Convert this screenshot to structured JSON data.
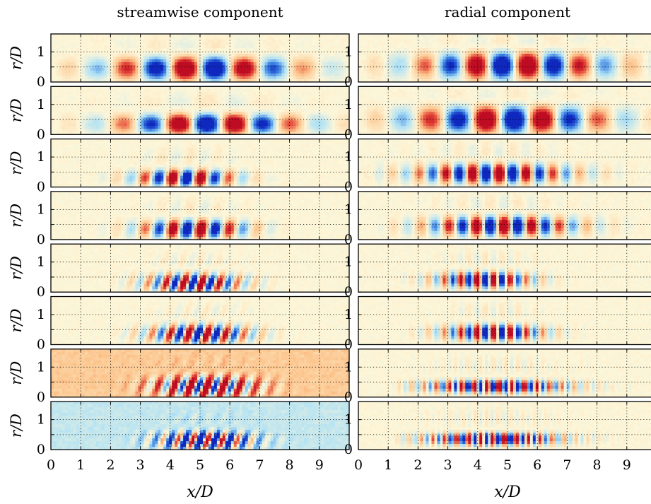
{
  "chart_data": {
    "type": "heatmap",
    "column_titles": [
      "streamwise component",
      "radial component"
    ],
    "xlabel": "x/D",
    "ylabel": "r/D",
    "xlim": [
      0,
      10
    ],
    "ylim": [
      0,
      1.6
    ],
    "xticks": [
      "0",
      "1",
      "2",
      "3",
      "4",
      "5",
      "6",
      "7",
      "8",
      "9"
    ],
    "yticks": [
      "0",
      "1"
    ],
    "grid": true,
    "colors": {
      "positive": "#c8102e",
      "negative": "#0a3fd6",
      "neutral": "#fdf6d8"
    },
    "rows": 8,
    "panels": [
      {
        "col": 0,
        "row": 0,
        "wavelength": 2.0,
        "x_start": 0.5,
        "x_peak": 5.0,
        "x_width": 3.2,
        "r_center": 0.45,
        "r_width": 0.35,
        "tilt": 0.0,
        "amplitude": 1.0,
        "bg": 0.0
      },
      {
        "col": 0,
        "row": 1,
        "wavelength": 1.9,
        "x_start": 0.5,
        "x_peak": 5.3,
        "x_width": 3.0,
        "r_center": 0.35,
        "r_width": 0.3,
        "tilt": 0.0,
        "amplitude": 1.0,
        "bg": 0.0
      },
      {
        "col": 0,
        "row": 2,
        "wavelength": 0.95,
        "x_start": 1.5,
        "x_peak": 4.5,
        "x_width": 1.6,
        "r_center": 0.3,
        "r_width": 0.25,
        "tilt": 0.15,
        "amplitude": 1.0,
        "bg": 0.0
      },
      {
        "col": 0,
        "row": 3,
        "wavelength": 0.95,
        "x_start": 1.5,
        "x_peak": 4.8,
        "x_width": 1.7,
        "r_center": 0.35,
        "r_width": 0.28,
        "tilt": 0.15,
        "amplitude": 1.0,
        "bg": 0.0
      },
      {
        "col": 0,
        "row": 4,
        "wavelength": 0.6,
        "x_start": 2.0,
        "x_peak": 4.8,
        "x_width": 1.5,
        "r_center": 0.3,
        "r_width": 0.3,
        "tilt": 0.35,
        "amplitude": 1.0,
        "bg": 0.0
      },
      {
        "col": 0,
        "row": 5,
        "wavelength": 0.62,
        "x_start": 2.0,
        "x_peak": 5.0,
        "x_width": 1.6,
        "r_center": 0.35,
        "r_width": 0.3,
        "tilt": 0.35,
        "amplitude": 1.0,
        "bg": 0.0
      },
      {
        "col": 0,
        "row": 6,
        "wavelength": 0.55,
        "x_start": 2.2,
        "x_peak": 5.2,
        "x_width": 1.7,
        "r_center": 0.35,
        "r_width": 0.35,
        "tilt": 0.4,
        "amplitude": 1.0,
        "bg": 0.35
      },
      {
        "col": 0,
        "row": 7,
        "wavelength": 0.5,
        "x_start": 2.5,
        "x_peak": 5.2,
        "x_width": 1.6,
        "r_center": 0.3,
        "r_width": 0.3,
        "tilt": 0.4,
        "amplitude": 1.0,
        "bg": -0.3
      },
      {
        "col": 1,
        "row": 0,
        "wavelength": 1.75,
        "x_start": 0.5,
        "x_peak": 5.2,
        "x_width": 3.2,
        "r_center": 0.55,
        "r_width": 0.4,
        "tilt": 0.0,
        "amplitude": 1.0,
        "bg": 0.0
      },
      {
        "col": 1,
        "row": 1,
        "wavelength": 1.9,
        "x_start": 0.5,
        "x_peak": 5.0,
        "x_width": 3.3,
        "r_center": 0.5,
        "r_width": 0.4,
        "tilt": 0.0,
        "amplitude": 1.0,
        "bg": 0.0
      },
      {
        "col": 1,
        "row": 2,
        "wavelength": 0.9,
        "x_start": 0.5,
        "x_peak": 4.5,
        "x_width": 2.5,
        "r_center": 0.45,
        "r_width": 0.3,
        "tilt": 0.0,
        "amplitude": 1.0,
        "bg": 0.0
      },
      {
        "col": 1,
        "row": 3,
        "wavelength": 0.93,
        "x_start": 1.0,
        "x_peak": 4.8,
        "x_width": 2.4,
        "r_center": 0.45,
        "r_width": 0.3,
        "tilt": 0.0,
        "amplitude": 1.0,
        "bg": 0.0
      },
      {
        "col": 1,
        "row": 4,
        "wavelength": 0.55,
        "x_start": 1.5,
        "x_peak": 4.2,
        "x_width": 1.5,
        "r_center": 0.4,
        "r_width": 0.25,
        "tilt": 0.0,
        "amplitude": 1.0,
        "bg": 0.0
      },
      {
        "col": 1,
        "row": 5,
        "wavelength": 0.55,
        "x_start": 1.5,
        "x_peak": 4.5,
        "x_width": 1.6,
        "r_center": 0.4,
        "r_width": 0.25,
        "tilt": 0.0,
        "amplitude": 1.0,
        "bg": 0.0
      },
      {
        "col": 1,
        "row": 6,
        "wavelength": 0.42,
        "x_start": 1.5,
        "x_peak": 4.6,
        "x_width": 2.3,
        "r_center": 0.35,
        "r_width": 0.2,
        "tilt": 0.0,
        "amplitude": 1.0,
        "bg": 0.0
      },
      {
        "col": 1,
        "row": 7,
        "wavelength": 0.4,
        "x_start": 1.5,
        "x_peak": 4.5,
        "x_width": 2.2,
        "r_center": 0.35,
        "r_width": 0.2,
        "tilt": 0.0,
        "amplitude": 1.0,
        "bg": 0.0
      }
    ]
  }
}
